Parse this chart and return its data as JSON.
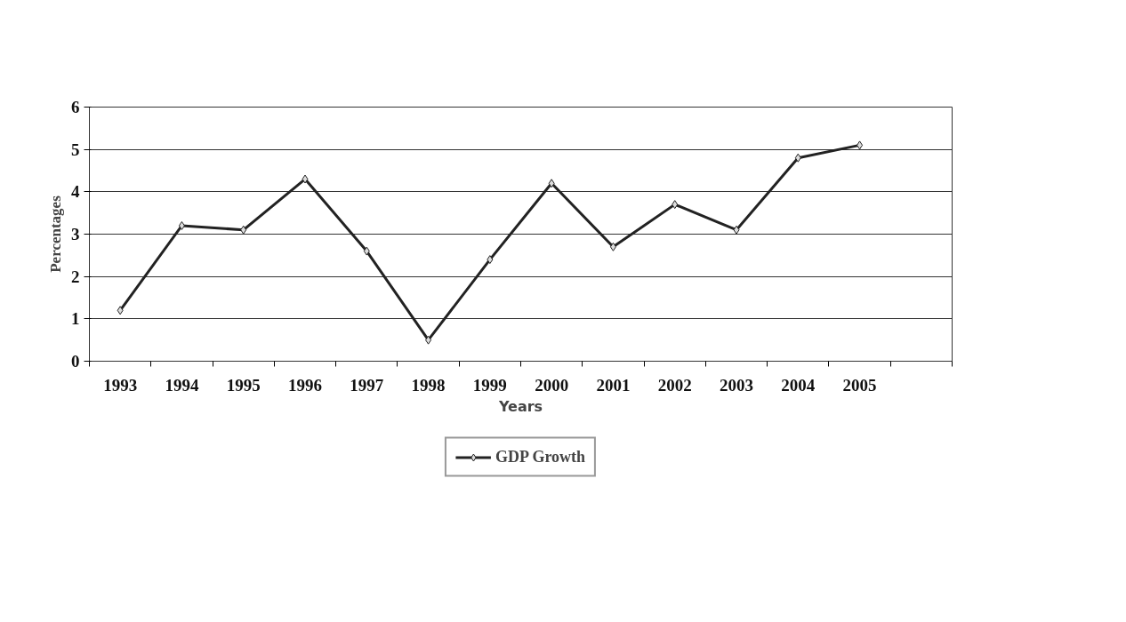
{
  "chart_data": {
    "type": "line",
    "xlabel": "Years",
    "ylabel": "Percentages",
    "categories": [
      "1993",
      "1994",
      "1995",
      "1996",
      "1997",
      "1998",
      "1999",
      "2000",
      "2001",
      "2002",
      "2003",
      "2004",
      "2005",
      null
    ],
    "series": [
      {
        "name": "GDP Growth",
        "color": "#222222",
        "values": [
          1.2,
          3.2,
          3.1,
          4.3,
          2.6,
          0.5,
          2.4,
          4.2,
          2.7,
          3.7,
          3.1,
          4.8,
          5.1,
          null
        ]
      }
    ],
    "ylim": [
      0,
      6
    ],
    "yticks": [
      0,
      1,
      2,
      3,
      4,
      5,
      6
    ],
    "grid": "y",
    "legend": "bottom",
    "marker": "diamond",
    "line_style": "solid"
  }
}
